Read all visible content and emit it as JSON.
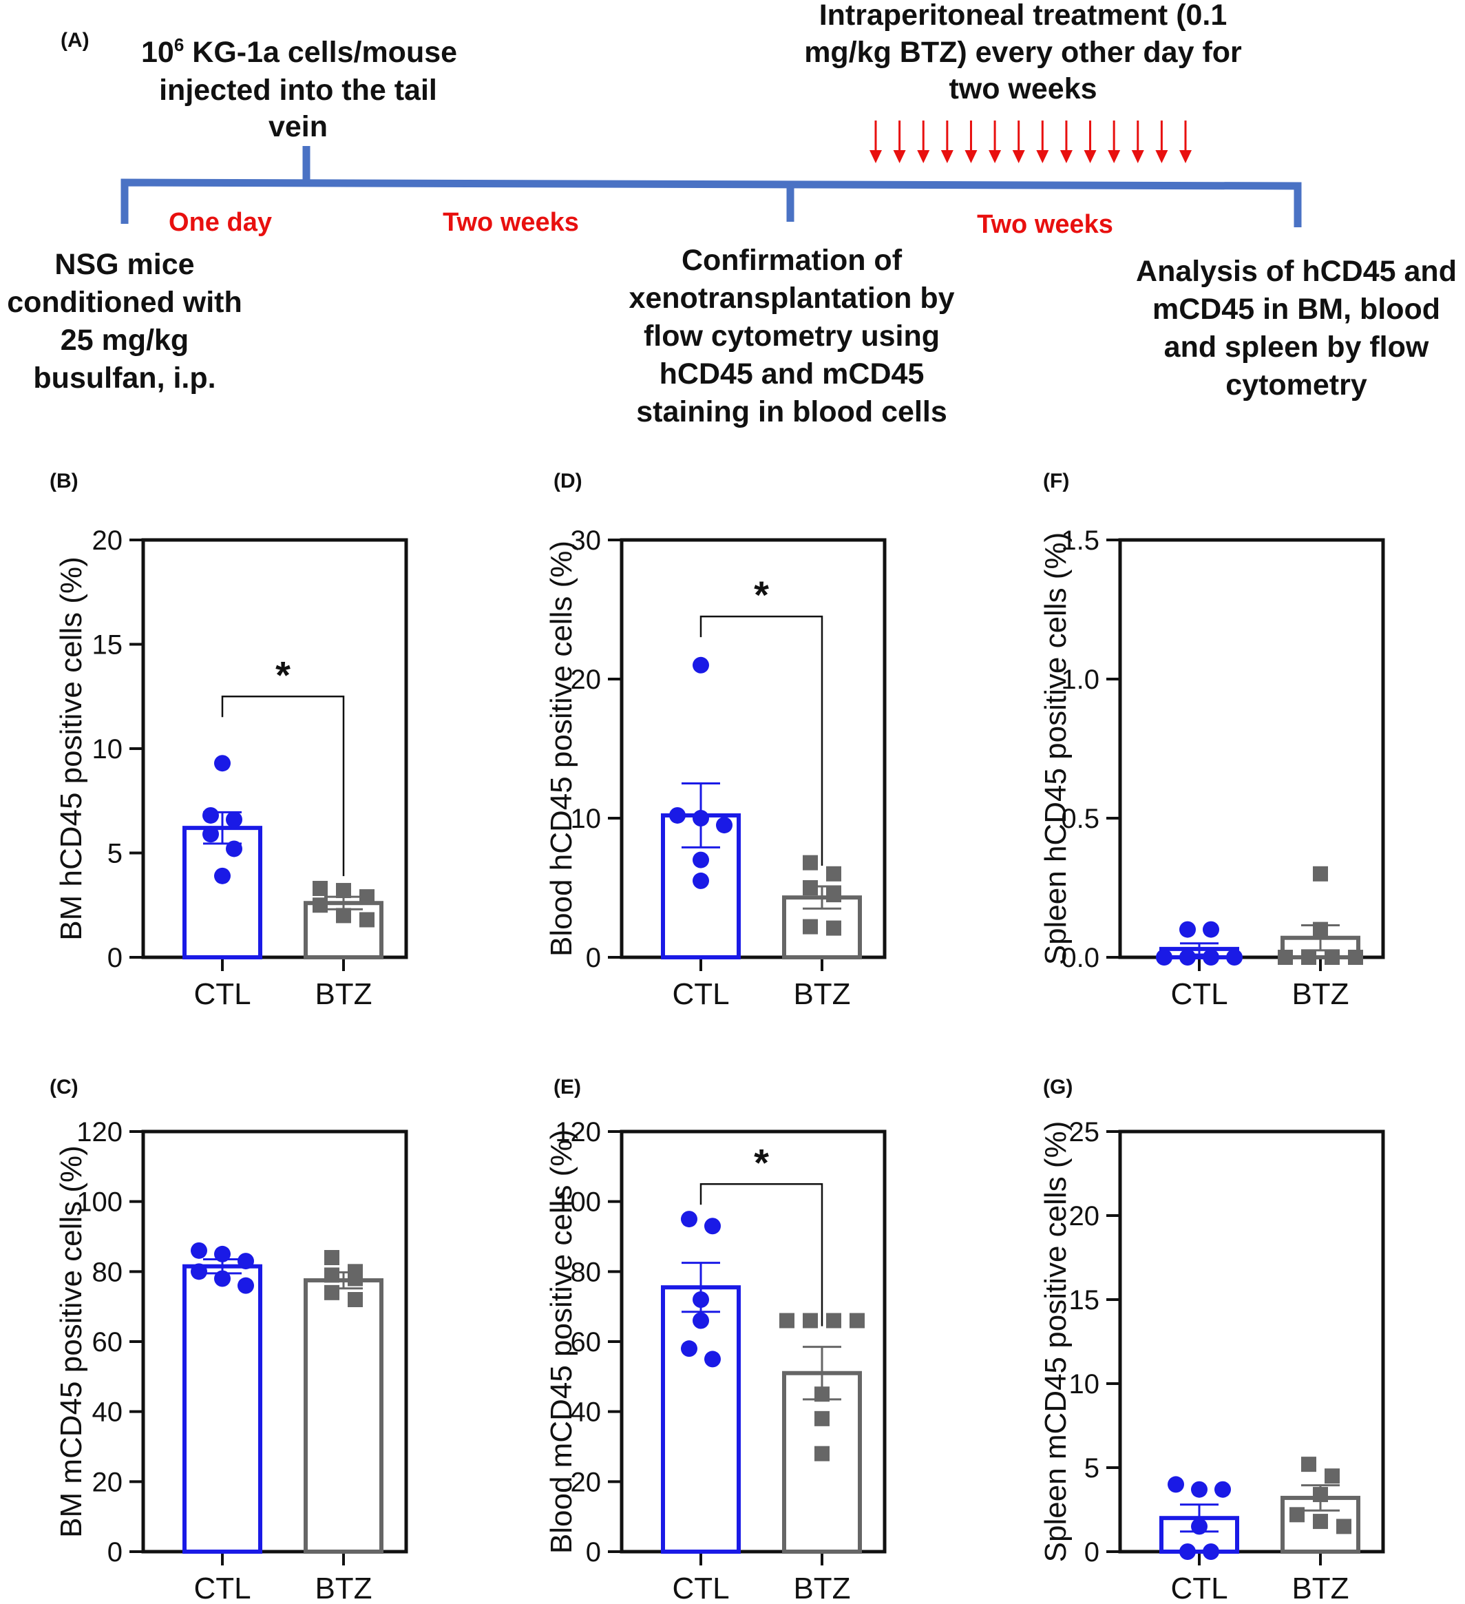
{
  "timeline": {
    "panel_label": "(A)",
    "injection_lines": [
      "10",
      "6",
      " KG-1a cells/mouse",
      "injected into the tail",
      "vein"
    ],
    "treatment_lines": [
      "Intraperitoneal treatment (0.1",
      "mg/kg BTZ) every other day for",
      "two weeks"
    ],
    "start_lines": [
      "NSG mice",
      "conditioned with",
      "25 mg/kg",
      "busulfan, i.p."
    ],
    "confirm_lines": [
      "Confirmation of",
      "xenotransplantation by",
      "flow cytometry using",
      "hCD45 and mCD45",
      "staining in blood cells"
    ],
    "analysis_lines": [
      "Analysis of hCD45 and",
      "mCD45 in BM, blood",
      "and spleen by flow",
      "cytometry"
    ],
    "durations": [
      "One day",
      "Two weeks",
      "Two weeks"
    ],
    "treatment_arrow_count": 14,
    "colors": {
      "line": "#4a72c4",
      "duration": "#e8100f",
      "arrow": "#e8100f"
    }
  },
  "colors": {
    "ctl": "#1a1ae6",
    "btz": "#666666",
    "axis": "#111111"
  },
  "chart_data": [
    {
      "panel": "(B)",
      "type": "bar",
      "ylabel": "BM hCD45 positive cells (%)",
      "categories": [
        "CTL",
        "BTZ"
      ],
      "ylim": [
        0,
        20
      ],
      "yticks": [
        0,
        5,
        10,
        15,
        20
      ],
      "ytick_labels": [
        "0",
        "5",
        "10",
        "15",
        "20"
      ],
      "series": [
        {
          "name": "CTL",
          "mean": 6.2,
          "sem": 0.75,
          "marker": "circle",
          "points": [
            9.3,
            6.8,
            5.9,
            6.6,
            5.2,
            3.9
          ]
        },
        {
          "name": "BTZ",
          "mean": 2.6,
          "sem": 0.3,
          "marker": "square",
          "points": [
            3.2,
            2.9,
            3.3,
            2.5,
            2.0,
            1.8
          ]
        }
      ],
      "significance": {
        "label": "*",
        "y": 12.5
      }
    },
    {
      "panel": "(C)",
      "type": "bar",
      "ylabel": "BM mCD45 positive cells (%)",
      "categories": [
        "CTL",
        "BTZ"
      ],
      "ylim": [
        0,
        120
      ],
      "yticks": [
        0,
        20,
        40,
        60,
        80,
        100,
        120
      ],
      "ytick_labels": [
        "0",
        "20",
        "40",
        "60",
        "80",
        "100",
        "120"
      ],
      "series": [
        {
          "name": "CTL",
          "mean": 81.5,
          "sem": 2.0,
          "marker": "circle",
          "points": [
            86,
            85,
            83,
            80,
            78,
            76
          ]
        },
        {
          "name": "BTZ",
          "mean": 77.5,
          "sem": 2.3,
          "marker": "square",
          "points": [
            84,
            80,
            79,
            78,
            74,
            72
          ]
        }
      ]
    },
    {
      "panel": "(D)",
      "type": "bar",
      "ylabel": "Blood hCD45 positive cells (%)",
      "categories": [
        "CTL",
        "BTZ"
      ],
      "ylim": [
        0,
        30
      ],
      "yticks": [
        0,
        10,
        20,
        30
      ],
      "ytick_labels": [
        "0",
        "10",
        "20",
        "30"
      ],
      "series": [
        {
          "name": "CTL",
          "mean": 10.2,
          "sem": 2.3,
          "marker": "circle",
          "points": [
            21.0,
            10.0,
            10.2,
            9.5,
            7.0,
            5.5
          ]
        },
        {
          "name": "BTZ",
          "mean": 4.3,
          "sem": 0.8,
          "marker": "square",
          "points": [
            6.8,
            6.0,
            5.0,
            2.2,
            2.1,
            4.5
          ]
        }
      ],
      "significance": {
        "label": "*",
        "y": 24.5
      }
    },
    {
      "panel": "(E)",
      "type": "bar",
      "ylabel": "Blood mCD45 positive cells (%)",
      "categories": [
        "CTL",
        "BTZ"
      ],
      "ylim": [
        0,
        120
      ],
      "yticks": [
        0,
        20,
        40,
        60,
        80,
        100,
        120
      ],
      "ytick_labels": [
        "0",
        "20",
        "40",
        "60",
        "80",
        "100",
        "120"
      ],
      "series": [
        {
          "name": "CTL",
          "mean": 75.5,
          "sem": 7.0,
          "marker": "circle",
          "points": [
            95,
            93,
            72,
            66,
            58,
            55
          ]
        },
        {
          "name": "BTZ",
          "mean": 51,
          "sem": 7.5,
          "marker": "square",
          "points": [
            66,
            66,
            66,
            66,
            45,
            38,
            28
          ]
        }
      ],
      "significance": {
        "label": "*",
        "y": 105
      }
    },
    {
      "panel": "(F)",
      "type": "bar",
      "ylabel": "Spleen hCD45 positive cells (%)",
      "categories": [
        "CTL",
        "BTZ"
      ],
      "ylim": [
        0,
        1.5
      ],
      "yticks": [
        0,
        0.5,
        1.0,
        1.5
      ],
      "ytick_labels": [
        "0.0",
        "0.5",
        "1.0",
        "1.5"
      ],
      "series": [
        {
          "name": "CTL",
          "mean": 0.03,
          "sem": 0.02,
          "marker": "circle",
          "points": [
            0.1,
            0.1,
            0.0,
            0.0,
            0.0,
            0.0
          ]
        },
        {
          "name": "BTZ",
          "mean": 0.07,
          "sem": 0.045,
          "marker": "square",
          "points": [
            0.3,
            0.1,
            0.0,
            0.0,
            0.0,
            0.0
          ]
        }
      ]
    },
    {
      "panel": "(G)",
      "type": "bar",
      "ylabel": "Spleen mCD45 positive cells (%)",
      "categories": [
        "CTL",
        "BTZ"
      ],
      "ylim": [
        0,
        25
      ],
      "yticks": [
        0,
        5,
        10,
        15,
        20,
        25
      ],
      "ytick_labels": [
        "0",
        "5",
        "10",
        "15",
        "20",
        "25"
      ],
      "series": [
        {
          "name": "CTL",
          "mean": 2.0,
          "sem": 0.8,
          "marker": "circle",
          "points": [
            4.0,
            3.7,
            3.7,
            1.5,
            0.0,
            0.0
          ]
        },
        {
          "name": "BTZ",
          "mean": 3.2,
          "sem": 0.75,
          "marker": "square",
          "points": [
            5.2,
            4.5,
            3.4,
            2.2,
            1.8,
            1.5
          ]
        }
      ]
    }
  ]
}
